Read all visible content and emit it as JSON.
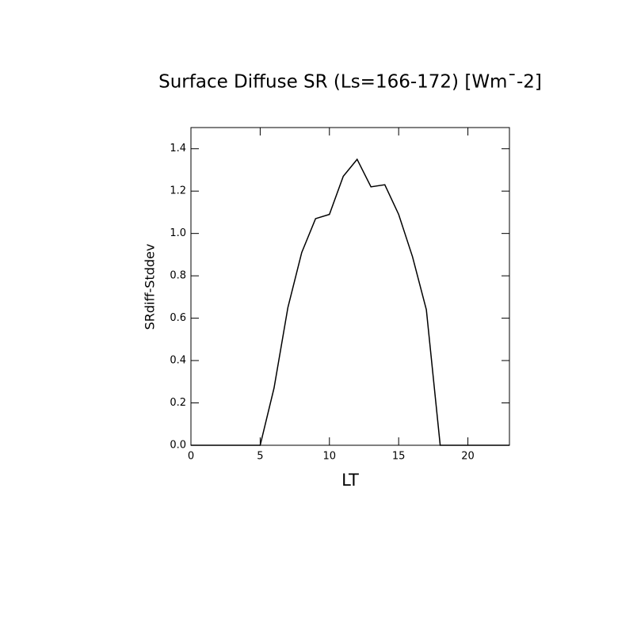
{
  "chart_data": {
    "type": "line",
    "title": "Surface Diffuse SR (Ls=166-172) [Wm¯-2]",
    "x_label": "LT",
    "y_label": "SRdiff-Stddev",
    "x": [
      0,
      1,
      2,
      3,
      4,
      5,
      6,
      7,
      8,
      9,
      10,
      11,
      12,
      13,
      14,
      15,
      16,
      17,
      18,
      19,
      20,
      21,
      22,
      23
    ],
    "series": [
      {
        "name": "SRdiff-Stddev",
        "color": "#000000",
        "values": [
          0,
          0,
          0,
          0,
          0,
          0,
          0.27,
          0.65,
          0.91,
          1.07,
          1.09,
          1.27,
          1.35,
          1.22,
          1.23,
          1.09,
          0.89,
          0.64,
          0,
          0,
          0,
          0,
          0,
          0
        ]
      }
    ],
    "xlim": [
      0,
      23
    ],
    "ylim": [
      0,
      1.5
    ],
    "xticks": [
      0,
      5,
      10,
      15,
      20
    ],
    "yticks": [
      {
        "value": 0,
        "label": "0.0"
      },
      0.2,
      0.4,
      0.6,
      0.8,
      {
        "value": 1,
        "label": "1.0"
      },
      1.2,
      1.4
    ]
  }
}
